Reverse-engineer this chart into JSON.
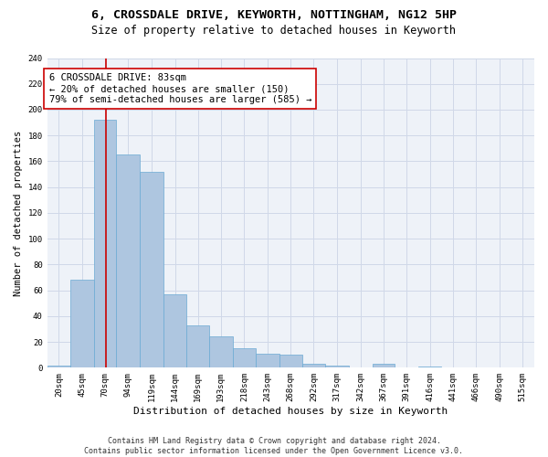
{
  "title1": "6, CROSSDALE DRIVE, KEYWORTH, NOTTINGHAM, NG12 5HP",
  "title2": "Size of property relative to detached houses in Keyworth",
  "xlabel": "Distribution of detached houses by size in Keyworth",
  "ylabel": "Number of detached properties",
  "bar_color": "#aec6e0",
  "bar_edge_color": "#6aaad4",
  "grid_color": "#d0d8e8",
  "background_color": "#eef2f8",
  "vline_x": 83,
  "vline_color": "#cc0000",
  "annotation_text": "6 CROSSDALE DRIVE: 83sqm\n← 20% of detached houses are smaller (150)\n79% of semi-detached houses are larger (585) →",
  "annotation_box_color": "#ffffff",
  "annotation_box_edgecolor": "#cc0000",
  "bins": [
    20,
    45,
    70,
    94,
    119,
    144,
    169,
    193,
    218,
    243,
    268,
    292,
    317,
    342,
    367,
    391,
    416,
    441,
    466,
    490,
    515
  ],
  "counts": [
    2,
    68,
    192,
    165,
    152,
    57,
    33,
    24,
    15,
    11,
    10,
    3,
    2,
    0,
    3,
    0,
    1,
    0,
    0,
    0,
    0
  ],
  "ylim": [
    0,
    240
  ],
  "yticks": [
    0,
    20,
    40,
    60,
    80,
    100,
    120,
    140,
    160,
    180,
    200,
    220,
    240
  ],
  "footer_text": "Contains HM Land Registry data © Crown copyright and database right 2024.\nContains public sector information licensed under the Open Government Licence v3.0.",
  "title1_fontsize": 9.5,
  "title2_fontsize": 8.5,
  "xlabel_fontsize": 8,
  "ylabel_fontsize": 7.5,
  "tick_fontsize": 6.5,
  "annotation_fontsize": 7.5,
  "footer_fontsize": 6
}
